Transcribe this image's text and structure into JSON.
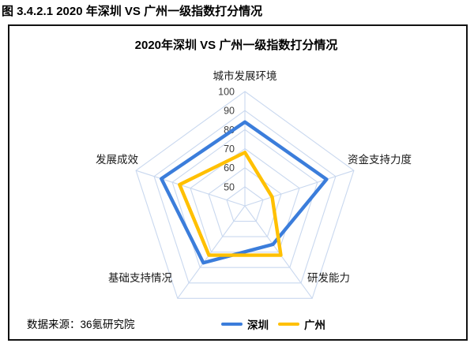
{
  "page": {
    "title": "图 3.4.2.1 2020 年深圳 VS 广州一级指数打分情况"
  },
  "source": {
    "label": "数据来源：36氪研究院"
  },
  "chart_data": {
    "type": "radar",
    "title": "2020年深圳 VS 广州一级指数打分情况",
    "categories": [
      "城市发展环境",
      "资金支持力度",
      "研发能力",
      "基础支持情况",
      "发展成效"
    ],
    "series": [
      {
        "name": "深圳",
        "color": "#3b7ddb",
        "values": [
          84,
          85,
          65,
          77,
          86
        ]
      },
      {
        "name": "广州",
        "color": "#ffc000",
        "values": [
          68,
          55,
          72,
          72,
          76
        ]
      }
    ],
    "scale": {
      "min": 40,
      "max": 100,
      "step": 10,
      "tick_labels": [
        "50",
        "60",
        "70",
        "80",
        "90",
        "100"
      ]
    },
    "grid_color": "#c9d8ef",
    "tick_color": "#3f3f3f",
    "axis_label_color": "#1a1a1a",
    "legend_position": "bottom"
  }
}
